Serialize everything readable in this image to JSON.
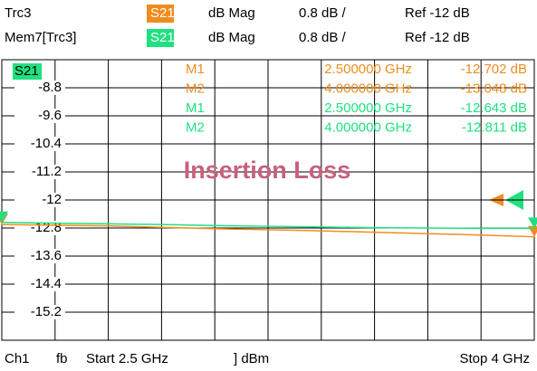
{
  "chart_data": {
    "type": "line",
    "title": "Insertion Loss",
    "header": [
      [
        "Trc3",
        "S21",
        "dB Mag",
        "0.8 dB /",
        "Ref -12 dB"
      ],
      [
        "Mem7[Trc3]",
        "S21",
        "dB Mag",
        "0.8 dB /",
        "Ref -12 dB"
      ]
    ],
    "trace_label": "S21",
    "markers": [
      [
        "M1",
        "2.500000 GHz",
        "-12.702 dB"
      ],
      [
        "M2",
        "4.000000 GHz",
        "-13.048 dB"
      ],
      [
        "M1",
        "2.500000 GHz",
        "-12.643 dB"
      ],
      [
        "M2",
        "4.000000 GHz",
        "-12.811 dB"
      ]
    ],
    "footer": [
      "Ch1",
      "fb",
      "Start 2.5 GHz",
      "] dBm",
      "Stop 4 GHz"
    ],
    "x": [
      2.5,
      2.65,
      2.8,
      2.95,
      3.1,
      3.25,
      3.4,
      3.55,
      3.7,
      3.85,
      4
    ],
    "xlim": [
      2.5,
      4
    ],
    "xticks": [
      2.5,
      2.65,
      2.8,
      2.95,
      3.1,
      3.25,
      3.4,
      3.55,
      3.7,
      3.85,
      4
    ],
    "ylim": [
      -16,
      -8
    ],
    "yticks": [
      -8.8,
      -9.6,
      -10.4,
      -11.2,
      -12.0,
      -12.8,
      -13.6,
      -14.4,
      -15.2
    ],
    "series": [
      {
        "name": "Trc3",
        "color": "#f08c1e",
        "values": [
          -12.7,
          -12.72,
          -12.74,
          -12.78,
          -12.82,
          -12.85,
          -12.88,
          -12.92,
          -12.96,
          -13.0,
          -13.05
        ]
      },
      {
        "name": "Mem7[Trc3]",
        "color": "#20e080",
        "values": [
          -12.64,
          -12.66,
          -12.68,
          -12.7,
          -12.73,
          -12.75,
          -12.77,
          -12.79,
          -12.8,
          -12.81,
          -12.81
        ]
      }
    ]
  }
}
